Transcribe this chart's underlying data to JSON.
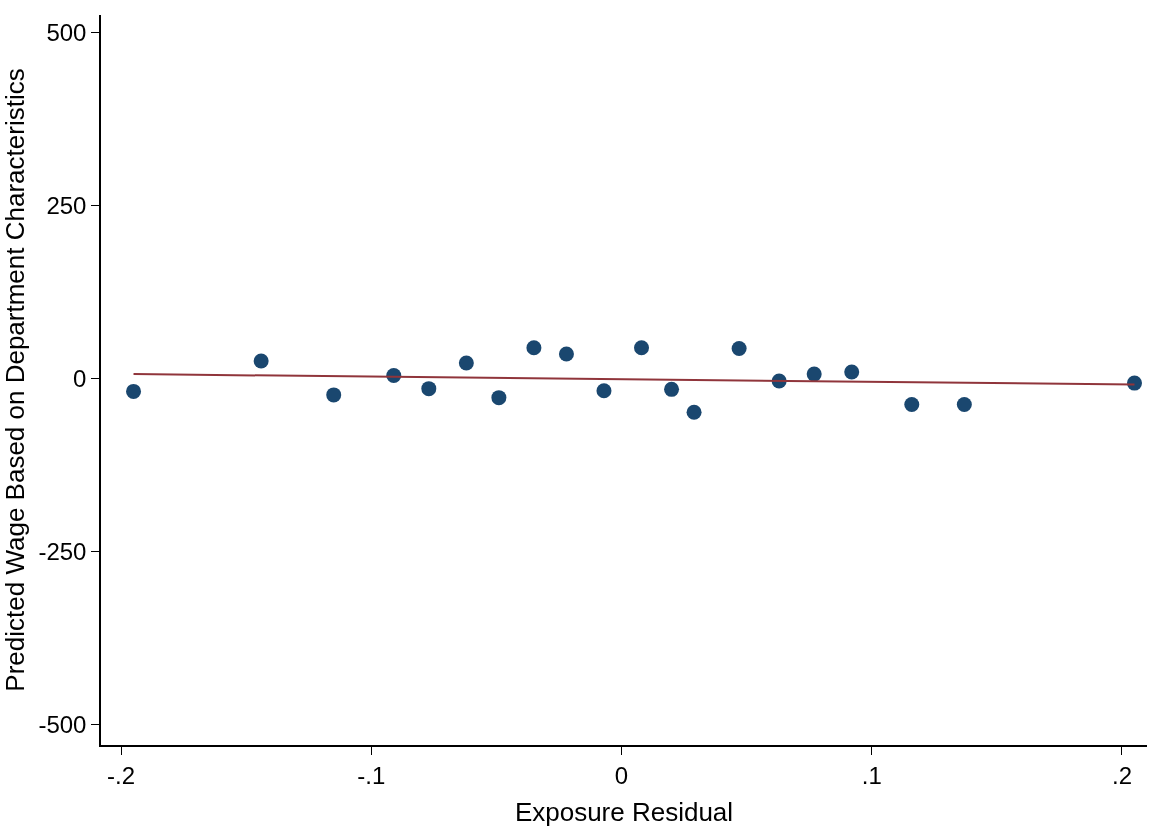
{
  "chart_data": {
    "type": "scatter",
    "xlabel": "Exposure Residual",
    "ylabel": "Predicted Wage Based on Department Characteristics",
    "xlim": [
      -0.208,
      0.21
    ],
    "ylim": [
      -530,
      525
    ],
    "xticks": [
      {
        "value": -0.2,
        "label": "-.2"
      },
      {
        "value": -0.1,
        "label": "-.1"
      },
      0,
      {
        "value": 0.1,
        "label": ".1"
      },
      {
        "value": 0.2,
        "label": ".2"
      }
    ],
    "yticks": [
      -500,
      -250,
      0,
      250,
      500
    ],
    "series": [
      {
        "marker": "circle",
        "color": "#1a476f",
        "x": [
          -0.195,
          -0.144,
          -0.115,
          -0.091,
          -0.077,
          -0.062,
          -0.049,
          -0.035,
          -0.022,
          -0.007,
          0.008,
          0.02,
          0.029,
          0.047,
          0.063,
          0.077,
          0.092,
          0.116,
          0.137,
          0.205
        ],
        "values": [
          -19,
          25,
          -24,
          4,
          -15,
          22,
          -28,
          44,
          35,
          -18,
          44,
          -16,
          -49,
          43,
          -4,
          6,
          9,
          -38,
          -38,
          -7
        ]
      },
      {
        "type": "line",
        "marker": "none",
        "line_style": "solid",
        "color": "#90353b",
        "x": [
          -0.195,
          0.205
        ],
        "values": [
          6,
          -9
        ]
      }
    ]
  }
}
